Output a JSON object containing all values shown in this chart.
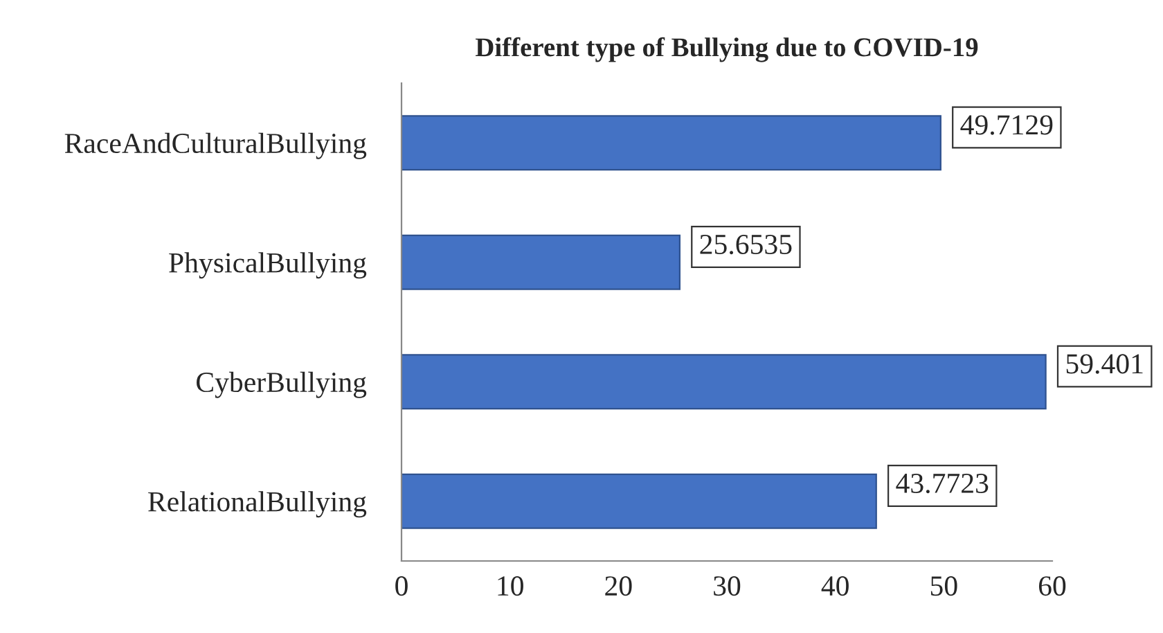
{
  "chart_data": {
    "type": "bar",
    "orientation": "horizontal",
    "title": "Different type of Bullying due to COVID-19",
    "categories": [
      "RaceAndCulturalBullying",
      "PhysicalBullying",
      "CyberBullying",
      "RelationalBullying"
    ],
    "values": [
      49.7129,
      25.6535,
      59.401,
      43.7723
    ],
    "color": "#4472c4",
    "xlim": [
      0,
      60
    ],
    "xticks": [
      0,
      10,
      20,
      30,
      40,
      50,
      60
    ],
    "grid": false,
    "data_labels": true
  }
}
